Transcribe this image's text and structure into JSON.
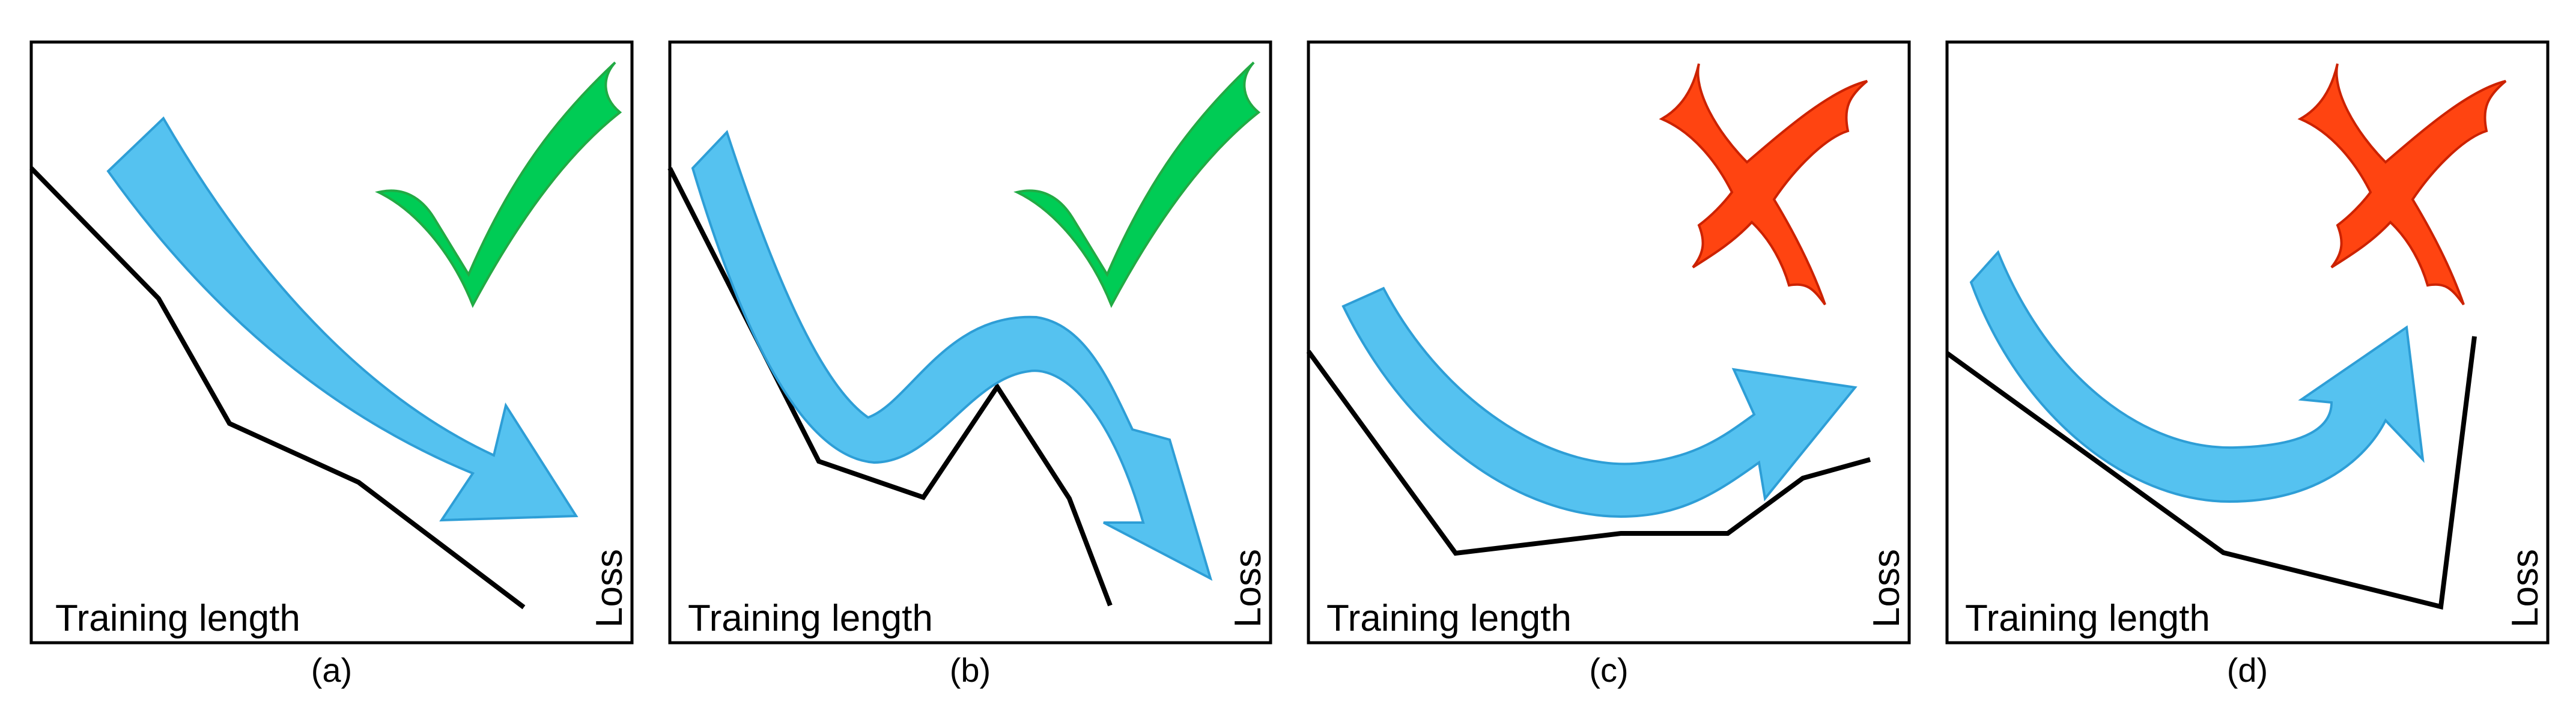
{
  "figure": {
    "panels": [
      {
        "id": "a",
        "caption": "(a)",
        "xlabel": "Training length",
        "ylabel": "Loss",
        "verdict": "check",
        "verdict_color": "#00cc55",
        "arrow_color": "#55c2f0"
      },
      {
        "id": "b",
        "caption": "(b)",
        "xlabel": "Training length",
        "ylabel": "Loss",
        "verdict": "check",
        "verdict_color": "#00cc55",
        "arrow_color": "#55c2f0"
      },
      {
        "id": "c",
        "caption": "(c)",
        "xlabel": "Training length",
        "ylabel": "Loss",
        "verdict": "cross",
        "verdict_color": "#ff4411",
        "arrow_color": "#55c2f0"
      },
      {
        "id": "d",
        "caption": "(d)",
        "xlabel": "Training length",
        "ylabel": "Loss",
        "verdict": "cross",
        "verdict_color": "#ff4411",
        "arrow_color": "#55c2f0"
      }
    ]
  }
}
